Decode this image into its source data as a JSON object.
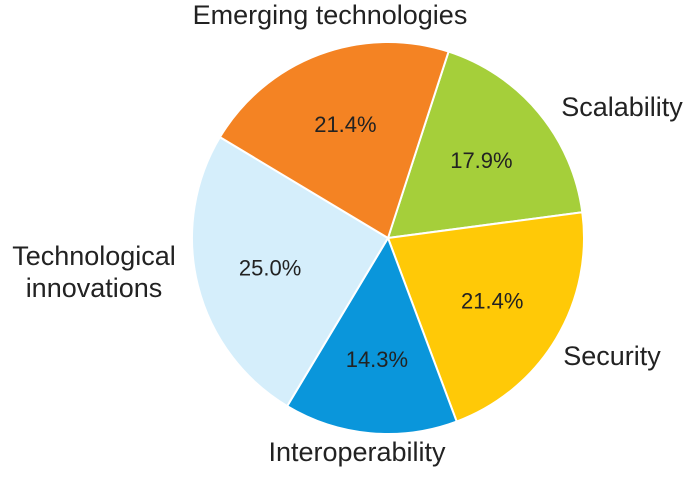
{
  "chart_data": {
    "type": "pie",
    "title": "",
    "start_angle_deg": 72,
    "direction": "clockwise",
    "slices": [
      {
        "label": "Scalability",
        "label_lines": [
          "Scalability"
        ],
        "value": 17.9,
        "pct_text": "17.9%",
        "color": "#a5cf3a"
      },
      {
        "label": "Security",
        "label_lines": [
          "Security"
        ],
        "value": 21.4,
        "pct_text": "21.4%",
        "color": "#ffc907"
      },
      {
        "label": "Interoperability",
        "label_lines": [
          "Interoperability"
        ],
        "value": 14.3,
        "pct_text": "14.3%",
        "color": "#0a96db"
      },
      {
        "label": "Technological innovations",
        "label_lines": [
          "Technological",
          "innovations"
        ],
        "value": 25.0,
        "pct_text": "25.0%",
        "color": "#d5eefb"
      },
      {
        "label": "Emerging technologies",
        "label_lines": [
          "Emerging technologies"
        ],
        "value": 21.4,
        "pct_text": "21.4%",
        "color": "#f48323"
      }
    ]
  }
}
